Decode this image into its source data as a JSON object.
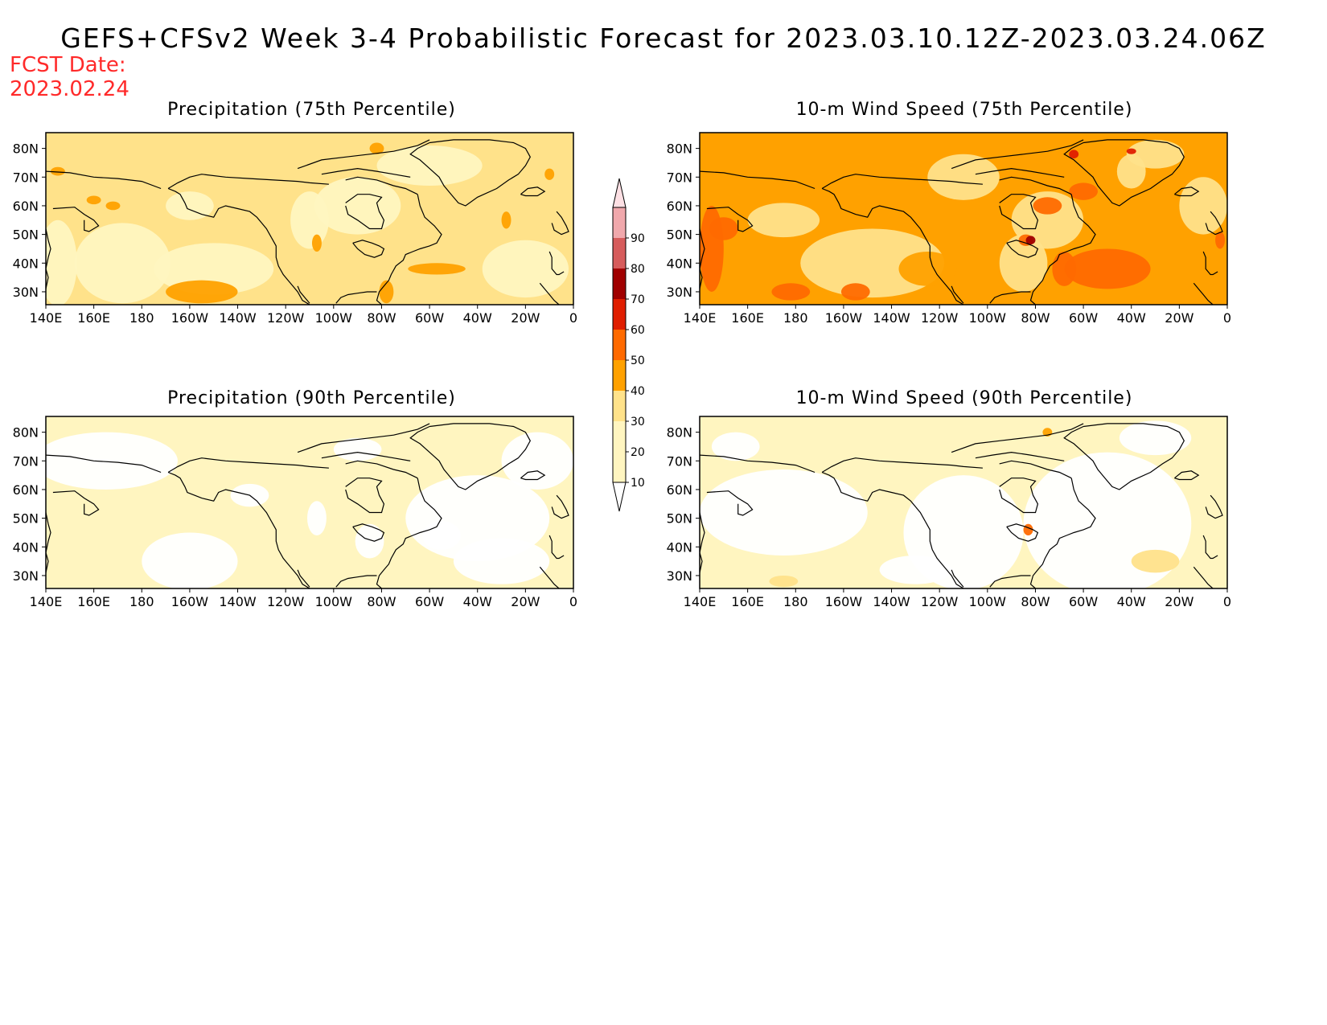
{
  "title": "GEFS+CFSv2 Week 3-4 Probabilistic Forecast for 2023.03.10.12Z-2023.03.24.06Z",
  "fcst_date_label": "FCST Date:",
  "fcst_date_value": "2023.02.24",
  "legend": {
    "levels": [
      "10",
      "20",
      "30",
      "40",
      "50",
      "60",
      "70",
      "80",
      "90"
    ],
    "colors": [
      "#fff5c0",
      "#ffe28a",
      "#ffa100",
      "#ff6a00",
      "#e01e00",
      "#a00000",
      "#d65c5c",
      "#f0a8ac",
      "#fde0e4"
    ]
  },
  "axes": {
    "lon_labels": [
      "140E",
      "160E",
      "180",
      "160W",
      "140W",
      "120W",
      "100W",
      "80W",
      "60W",
      "40W",
      "20W",
      "0"
    ],
    "lat_labels": [
      "80N",
      "70N",
      "60N",
      "50N",
      "40N",
      "30N"
    ]
  },
  "panels": [
    {
      "id": "precip-75",
      "title": "Precipitation (75th Percentile)",
      "base": "#ffe28a"
    },
    {
      "id": "wind-75",
      "title": "10-m Wind Speed (75th Percentile)",
      "base": "#ffa100"
    },
    {
      "id": "precip-90",
      "title": "Precipitation (90th Percentile)",
      "base": "#fff5c0"
    },
    {
      "id": "wind-90",
      "title": "10-m Wind Speed (90th Percentile)",
      "base": "#fff5c0"
    }
  ]
}
